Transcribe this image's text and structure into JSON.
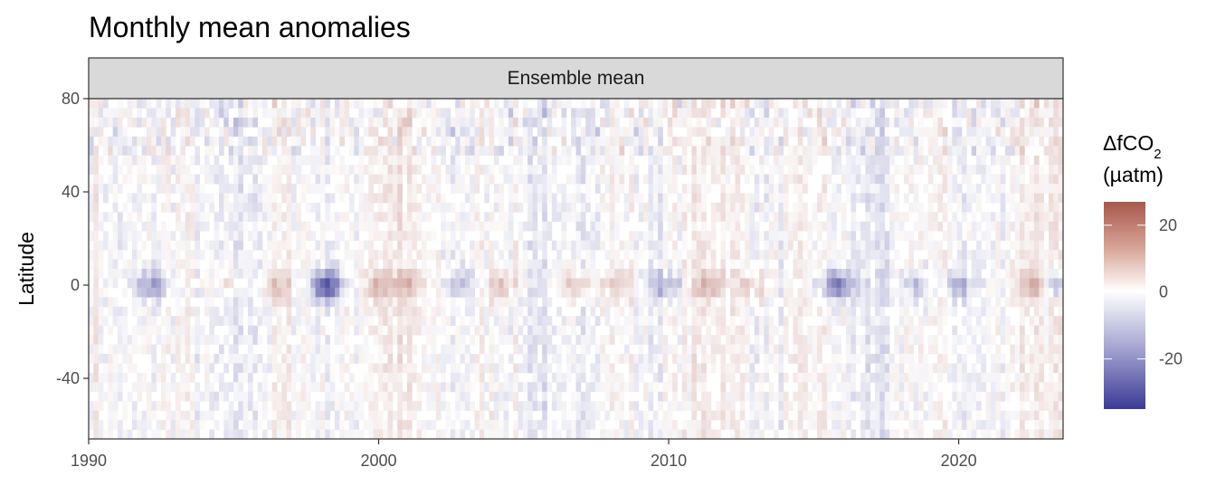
{
  "chart_data": {
    "type": "heatmap",
    "title": "Monthly mean anomalies",
    "facet_label": "Ensemble mean",
    "xlabel": "",
    "ylabel": "Latitude",
    "xlim": [
      1990,
      2023.6
    ],
    "ylim": [
      -66,
      80
    ],
    "x_ticks": [
      1990,
      2000,
      2010,
      2020
    ],
    "x_tick_labels": [
      "1990",
      "2000",
      "2010",
      "2020"
    ],
    "y_ticks": [
      80,
      40,
      0,
      -40
    ],
    "y_tick_labels": [
      "80",
      "40",
      "0",
      "-40"
    ],
    "colorbar": {
      "title": "ΔfCO",
      "title_subscript": "2",
      "unit": "(µatm)",
      "range": [
        -35,
        27
      ],
      "ticks": [
        20,
        0,
        -20
      ],
      "tick_labels": [
        "20",
        "0",
        "-20"
      ],
      "low_color": "#3b3b96",
      "mid_color": "#ffffff",
      "high_color": "#a8574b"
    },
    "grid": false,
    "legend_position": "right",
    "equatorial_events": [
      {
        "year": 1992.2,
        "sign": "negative",
        "strength": 0.55
      },
      {
        "year": 1994.8,
        "sign": "positive",
        "strength": 0.2
      },
      {
        "year": 1996.5,
        "sign": "positive",
        "strength": 0.3
      },
      {
        "year": 1998.2,
        "sign": "negative",
        "strength": 0.9
      },
      {
        "year": 2000.0,
        "sign": "positive",
        "strength": 0.35
      },
      {
        "year": 2001.0,
        "sign": "positive",
        "strength": 0.35
      },
      {
        "year": 2002.9,
        "sign": "negative",
        "strength": 0.3
      },
      {
        "year": 2004.3,
        "sign": "positive",
        "strength": 0.35
      },
      {
        "year": 2006.8,
        "sign": "positive",
        "strength": 0.4
      },
      {
        "year": 2008.3,
        "sign": "positive",
        "strength": 0.3
      },
      {
        "year": 2009.9,
        "sign": "negative",
        "strength": 0.4
      },
      {
        "year": 2011.4,
        "sign": "positive",
        "strength": 0.35
      },
      {
        "year": 2013.0,
        "sign": "positive",
        "strength": 0.3
      },
      {
        "year": 2015.8,
        "sign": "negative",
        "strength": 0.75
      },
      {
        "year": 2018.5,
        "sign": "negative",
        "strength": 0.3
      },
      {
        "year": 2020.0,
        "sign": "negative",
        "strength": 0.35
      },
      {
        "year": 2022.5,
        "sign": "positive",
        "strength": 0.45
      },
      {
        "year": 2023.4,
        "sign": "negative",
        "strength": 0.5
      }
    ]
  }
}
